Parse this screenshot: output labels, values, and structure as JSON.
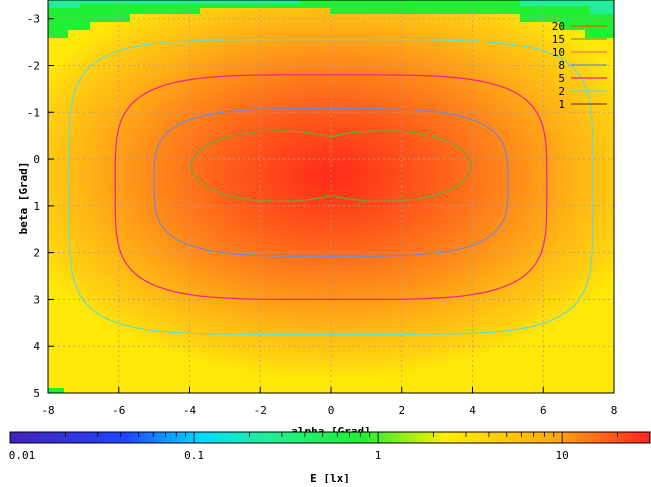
{
  "chart_data": {
    "type": "heatmap",
    "xlabel": "alpha [Grad]",
    "ylabel": "beta [Grad]",
    "xlim": [
      -8,
      8
    ],
    "ylim": [
      -3.4,
      5
    ],
    "x_ticks": [
      "-8",
      "-6",
      "-4",
      "-2",
      "0",
      "2",
      "4",
      "6",
      "8"
    ],
    "y_ticks": [
      "-3",
      "-2",
      "-1",
      "0",
      "1",
      "2",
      "3",
      "4",
      "5"
    ],
    "y_axis_direction": "downward",
    "grid": true,
    "colorbar": {
      "label": "E [lx]",
      "scale": "log",
      "range": [
        0.01,
        30
      ],
      "ticks": [
        "0.01",
        "0.1",
        "1",
        "10"
      ],
      "colors": [
        "#4422bb",
        "#2244ff",
        "#00ddff",
        "#22ee99",
        "#22ee33",
        "#ffee00",
        "#ffaa11",
        "#ff2222"
      ]
    },
    "contours": [
      {
        "name": "20",
        "value": 20,
        "color": "#ff5500"
      },
      {
        "name": "15",
        "value": 15,
        "color": "#66aa33"
      },
      {
        "name": "10",
        "value": 10,
        "color": "#ff7755"
      },
      {
        "name": "8",
        "value": 8,
        "color": "#7788cc"
      },
      {
        "name": "5",
        "value": 5,
        "color": "#ee2288"
      },
      {
        "name": "2",
        "value": 2,
        "color": "#66ddcc"
      },
      {
        "name": "1",
        "value": 1,
        "color": "#884422"
      }
    ],
    "legend_position": "top-right"
  }
}
